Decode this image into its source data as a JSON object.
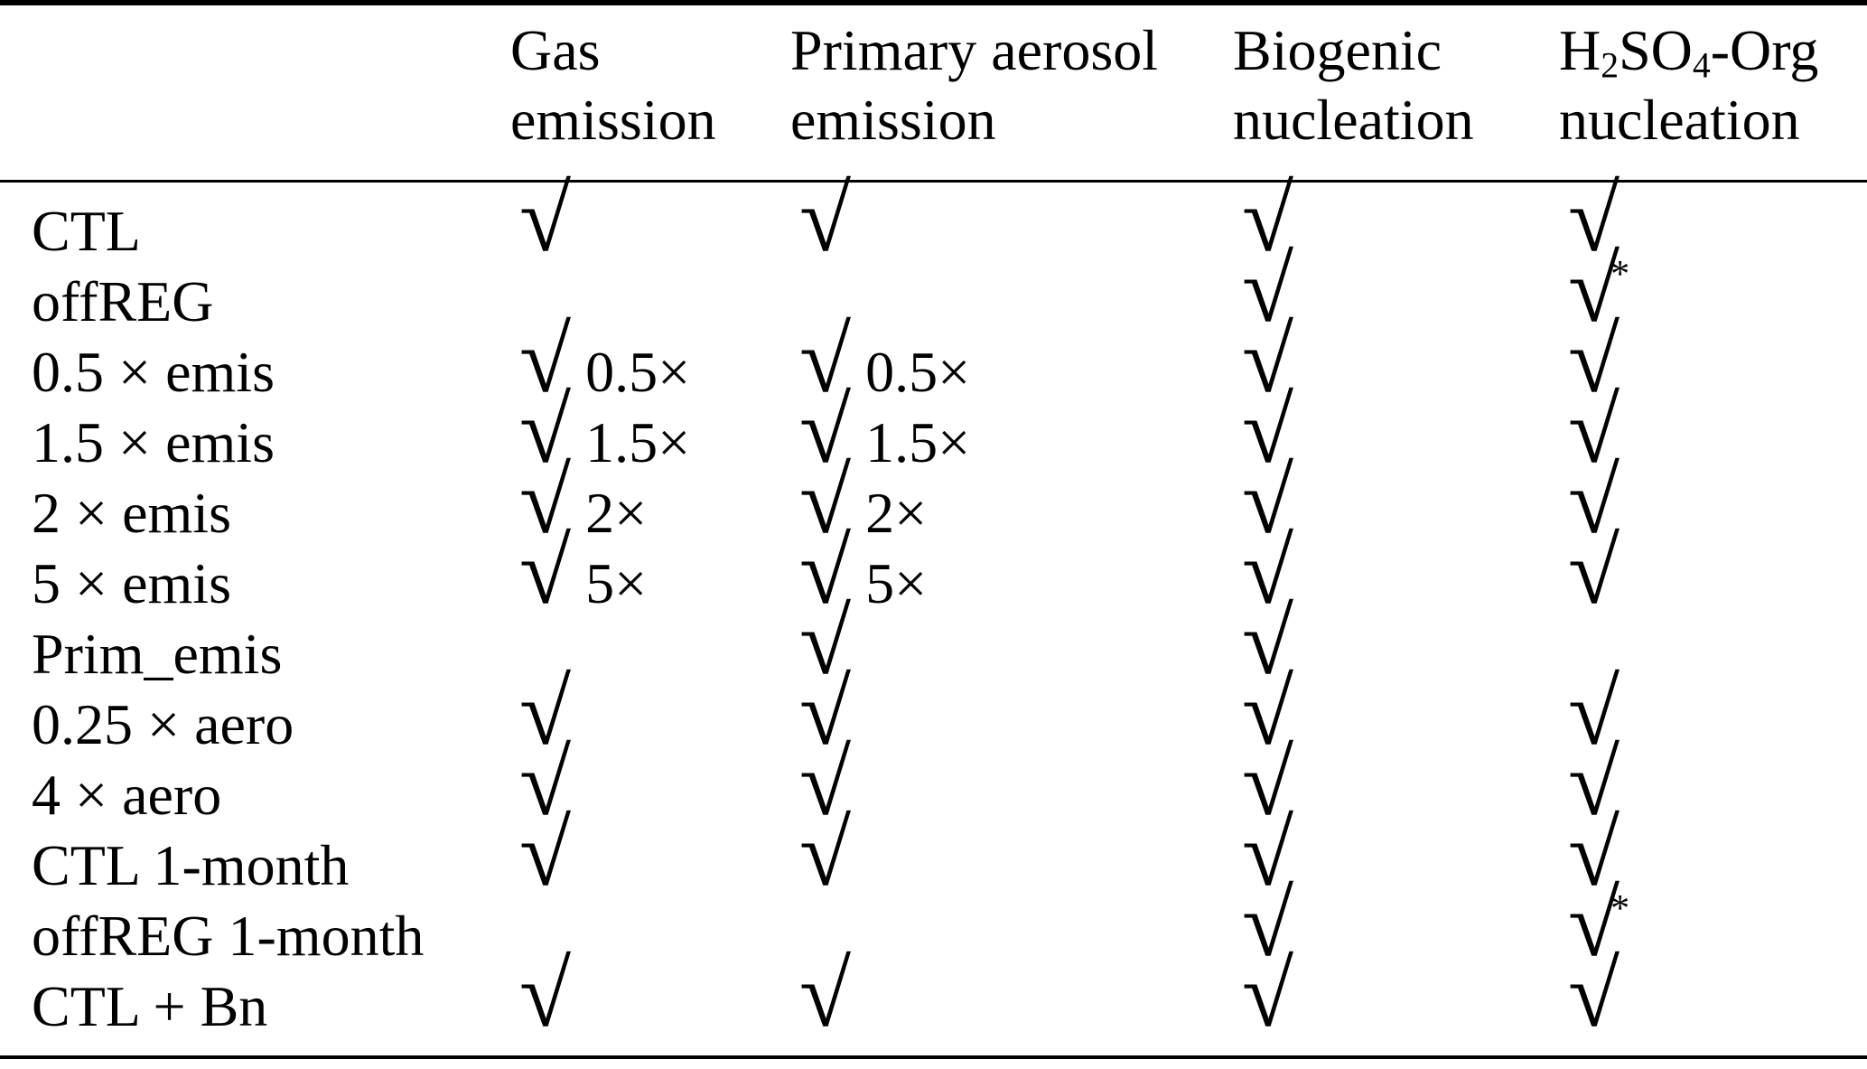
{
  "page": {
    "background_color": "#ffffff",
    "text_color": "#000000"
  },
  "table": {
    "check_glyph": "√",
    "star_glyph": "*",
    "columns": [
      {
        "id": "experiment",
        "lines": []
      },
      {
        "id": "gas-emission",
        "lines": [
          [
            {
              "t": "Gas"
            }
          ],
          [
            {
              "t": "emission"
            }
          ]
        ]
      },
      {
        "id": "primary-aerosol-emission",
        "lines": [
          [
            {
              "t": "Primary aerosol"
            }
          ],
          [
            {
              "t": "emission"
            }
          ]
        ]
      },
      {
        "id": "biogenic-nucleation",
        "lines": [
          [
            {
              "t": "Biogenic"
            }
          ],
          [
            {
              "t": "nucleation"
            }
          ]
        ]
      },
      {
        "id": "h2so4-org-nucleation",
        "lines": [
          [
            {
              "t": "H"
            },
            {
              "t": "2",
              "sub": true
            },
            {
              "t": "SO"
            },
            {
              "t": "4",
              "sub": true
            },
            {
              "t": "-Org"
            }
          ],
          [
            {
              "t": "nucleation"
            }
          ]
        ]
      }
    ],
    "rows": [
      {
        "label": "CTL",
        "cells": [
          {
            "check": true
          },
          {
            "check": true
          },
          {
            "check": true
          },
          {
            "check": true
          }
        ]
      },
      {
        "label": "offREG",
        "cells": [
          null,
          null,
          {
            "check": true
          },
          {
            "check": true,
            "star": true
          }
        ]
      },
      {
        "label": "0.5 × emis",
        "cells": [
          {
            "check": true,
            "suffix": "0.5×"
          },
          {
            "check": true,
            "suffix": "0.5×"
          },
          {
            "check": true
          },
          {
            "check": true
          }
        ]
      },
      {
        "label": "1.5 × emis",
        "cells": [
          {
            "check": true,
            "suffix": "1.5×"
          },
          {
            "check": true,
            "suffix": "1.5×"
          },
          {
            "check": true
          },
          {
            "check": true
          }
        ]
      },
      {
        "label": "2 × emis",
        "cells": [
          {
            "check": true,
            "suffix": "2×"
          },
          {
            "check": true,
            "suffix": "2×"
          },
          {
            "check": true
          },
          {
            "check": true
          }
        ]
      },
      {
        "label": "5 × emis",
        "cells": [
          {
            "check": true,
            "suffix": "5×"
          },
          {
            "check": true,
            "suffix": "5×"
          },
          {
            "check": true
          },
          {
            "check": true
          }
        ]
      },
      {
        "label": "Prim_emis",
        "cells": [
          null,
          {
            "check": true
          },
          {
            "check": true
          },
          null
        ]
      },
      {
        "label": "0.25 × aero",
        "cells": [
          {
            "check": true
          },
          {
            "check": true
          },
          {
            "check": true
          },
          {
            "check": true
          }
        ]
      },
      {
        "label": "4 × aero",
        "cells": [
          {
            "check": true
          },
          {
            "check": true
          },
          {
            "check": true
          },
          {
            "check": true
          }
        ]
      },
      {
        "label": "CTL 1-month",
        "cells": [
          {
            "check": true
          },
          {
            "check": true
          },
          {
            "check": true
          },
          {
            "check": true
          }
        ]
      },
      {
        "label": "offREG 1-month",
        "cells": [
          null,
          null,
          {
            "check": true
          },
          {
            "check": true,
            "star": true
          }
        ]
      },
      {
        "label": "CTL + Bn",
        "cells": [
          {
            "check": true
          },
          {
            "check": true
          },
          {
            "check": true
          },
          {
            "check": true
          }
        ]
      }
    ]
  }
}
